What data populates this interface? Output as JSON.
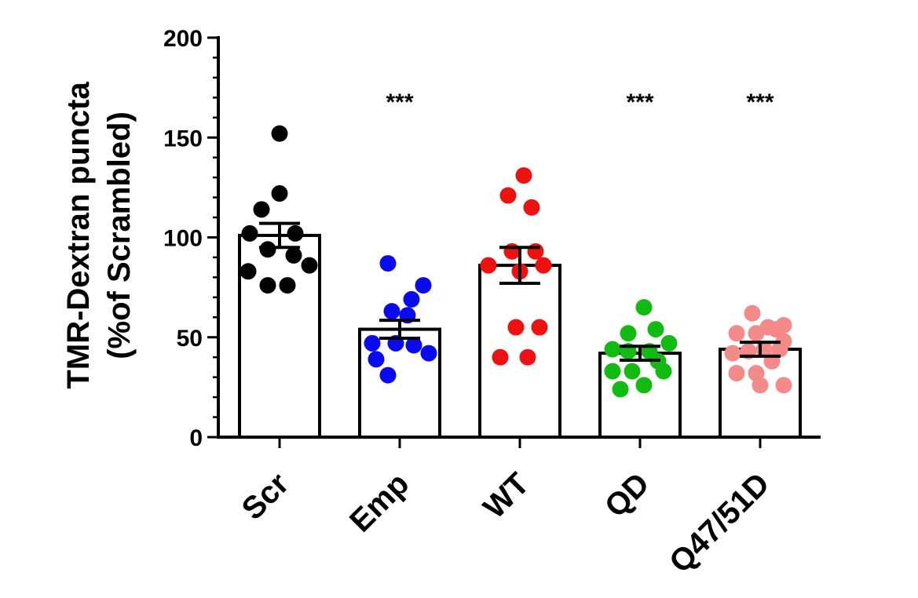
{
  "chart_data": {
    "type": "bar",
    "ylabel_lines": [
      "TMR-Dextran puncta",
      "(%of Scrambled)"
    ],
    "ylim": [
      0,
      200
    ],
    "yticks": [
      0,
      50,
      100,
      150,
      200
    ],
    "categories": [
      "Scr",
      "Emp",
      "WT",
      "QD",
      "Q47/51D"
    ],
    "means": [
      101,
      54,
      86,
      42,
      44
    ],
    "sem": [
      6,
      4.5,
      9,
      3.5,
      3.5
    ],
    "significance": [
      "",
      "***",
      "",
      "***",
      "***"
    ],
    "colors": [
      "#000000",
      "#0a0af0",
      "#ee1111",
      "#11bb11",
      "#f58a8a"
    ],
    "points": [
      [
        [
          0,
          152
        ],
        [
          0,
          122
        ],
        [
          -0.23,
          114
        ],
        [
          -0.38,
          102
        ],
        [
          0.2,
          102
        ],
        [
          -0.15,
          94
        ],
        [
          0.18,
          91
        ],
        [
          0.38,
          86
        ],
        [
          -0.4,
          83
        ],
        [
          -0.15,
          76
        ],
        [
          0.1,
          76
        ]
      ],
      [
        [
          -0.15,
          87
        ],
        [
          0.3,
          76
        ],
        [
          0.15,
          69
        ],
        [
          -0.1,
          63
        ],
        [
          0.1,
          61
        ],
        [
          -0.35,
          47
        ],
        [
          -0.05,
          47
        ],
        [
          0.18,
          46
        ],
        [
          0.37,
          42
        ],
        [
          -0.3,
          39
        ],
        [
          -0.15,
          31
        ]
      ],
      [
        [
          0.05,
          131
        ],
        [
          -0.15,
          121
        ],
        [
          0.15,
          115
        ],
        [
          -0.1,
          93
        ],
        [
          0.2,
          93
        ],
        [
          -0.4,
          86
        ],
        [
          0,
          83
        ],
        [
          0.3,
          86
        ],
        [
          -0.05,
          55
        ],
        [
          0.25,
          55
        ],
        [
          -0.25,
          40
        ],
        [
          0.1,
          40
        ]
      ],
      [
        [
          0.05,
          65
        ],
        [
          -0.15,
          52
        ],
        [
          0.2,
          54
        ],
        [
          -0.35,
          44
        ],
        [
          -0.15,
          43
        ],
        [
          0.12,
          43
        ],
        [
          0.37,
          47
        ],
        [
          0.23,
          38
        ],
        [
          -0.35,
          33
        ],
        [
          -0.1,
          33
        ],
        [
          0.3,
          33
        ],
        [
          0.05,
          26
        ],
        [
          -0.25,
          24
        ]
      ],
      [
        [
          -0.1,
          62
        ],
        [
          0.1,
          55
        ],
        [
          0.3,
          56
        ],
        [
          -0.3,
          52
        ],
        [
          -0.05,
          52
        ],
        [
          0.2,
          54
        ],
        [
          0.3,
          48
        ],
        [
          -0.35,
          42
        ],
        [
          -0.15,
          43
        ],
        [
          0.05,
          44
        ],
        [
          0.25,
          44
        ],
        [
          0.15,
          38
        ],
        [
          -0.3,
          32
        ],
        [
          -0.05,
          32
        ],
        [
          0.3,
          26
        ],
        [
          0,
          26
        ]
      ]
    ]
  }
}
